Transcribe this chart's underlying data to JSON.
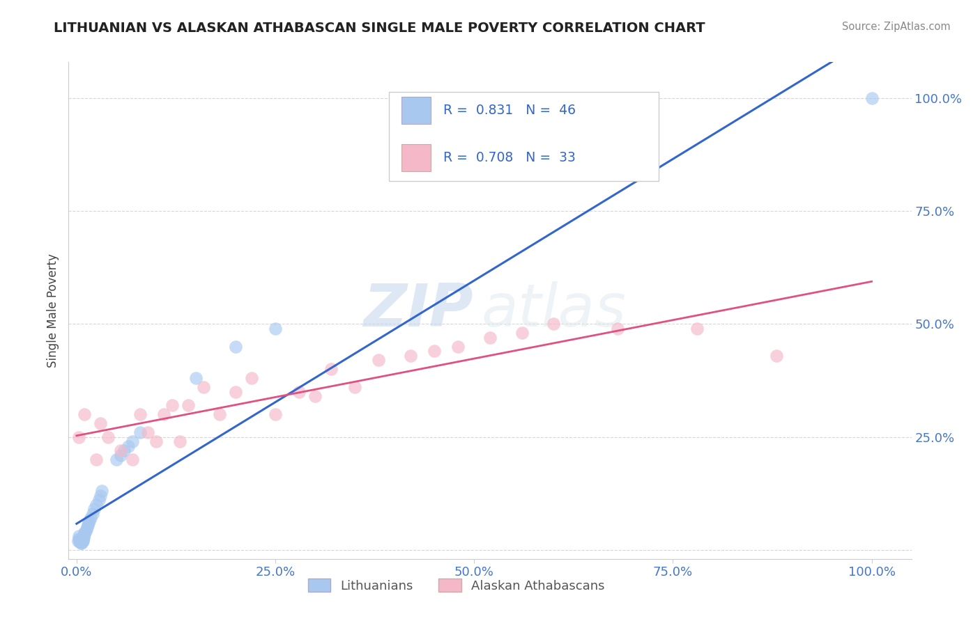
{
  "title": "LITHUANIAN VS ALASKAN ATHABASCAN SINGLE MALE POVERTY CORRELATION CHART",
  "source": "Source: ZipAtlas.com",
  "ylabel": "Single Male Poverty",
  "watermark_zip": "ZIP",
  "watermark_atlas": "atlas",
  "blue_R": "0.831",
  "blue_N": "46",
  "pink_R": "0.708",
  "pink_N": "33",
  "blue_color": "#a8c8f0",
  "pink_color": "#f5b8c8",
  "blue_line_color": "#3366cc",
  "pink_line_color": "#e05080",
  "legend_label_blue": "Lithuanians",
  "legend_label_pink": "Alaskan Athabascans",
  "blue_points_x": [
    0.002,
    0.003,
    0.003,
    0.004,
    0.004,
    0.005,
    0.005,
    0.005,
    0.005,
    0.006,
    0.006,
    0.006,
    0.007,
    0.007,
    0.007,
    0.007,
    0.008,
    0.008,
    0.008,
    0.009,
    0.009,
    0.01,
    0.01,
    0.011,
    0.012,
    0.013,
    0.014,
    0.015,
    0.016,
    0.018,
    0.02,
    0.022,
    0.025,
    0.028,
    0.03,
    0.032,
    0.05,
    0.055,
    0.06,
    0.065,
    0.07,
    0.08,
    0.15,
    0.2,
    0.25,
    1.0
  ],
  "blue_points_y": [
    0.02,
    0.025,
    0.03,
    0.018,
    0.022,
    0.015,
    0.018,
    0.02,
    0.025,
    0.015,
    0.018,
    0.022,
    0.018,
    0.02,
    0.022,
    0.025,
    0.02,
    0.022,
    0.025,
    0.028,
    0.03,
    0.035,
    0.038,
    0.04,
    0.045,
    0.05,
    0.055,
    0.06,
    0.065,
    0.07,
    0.08,
    0.09,
    0.1,
    0.11,
    0.12,
    0.13,
    0.2,
    0.21,
    0.22,
    0.23,
    0.24,
    0.26,
    0.38,
    0.45,
    0.49,
    1.0
  ],
  "pink_points_x": [
    0.003,
    0.01,
    0.025,
    0.03,
    0.04,
    0.055,
    0.07,
    0.08,
    0.09,
    0.1,
    0.11,
    0.12,
    0.13,
    0.14,
    0.16,
    0.18,
    0.2,
    0.22,
    0.25,
    0.28,
    0.3,
    0.32,
    0.35,
    0.38,
    0.42,
    0.45,
    0.48,
    0.52,
    0.56,
    0.6,
    0.68,
    0.78,
    0.88
  ],
  "pink_points_y": [
    0.25,
    0.3,
    0.2,
    0.28,
    0.25,
    0.22,
    0.2,
    0.3,
    0.26,
    0.24,
    0.3,
    0.32,
    0.24,
    0.32,
    0.36,
    0.3,
    0.35,
    0.38,
    0.3,
    0.35,
    0.34,
    0.4,
    0.36,
    0.42,
    0.43,
    0.44,
    0.45,
    0.47,
    0.48,
    0.5,
    0.49,
    0.49,
    0.43
  ],
  "yticks": [
    0.0,
    0.25,
    0.5,
    0.75,
    1.0
  ],
  "ytick_labels": [
    "",
    "25.0%",
    "50.0%",
    "75.0%",
    "100.0%"
  ],
  "xticks": [
    0.0,
    0.25,
    0.5,
    0.75,
    1.0
  ],
  "xtick_labels": [
    "0.0%",
    "25.0%",
    "50.0%",
    "75.0%",
    "100.0%"
  ],
  "xlim": [
    -0.01,
    1.05
  ],
  "ylim": [
    -0.02,
    1.08
  ]
}
